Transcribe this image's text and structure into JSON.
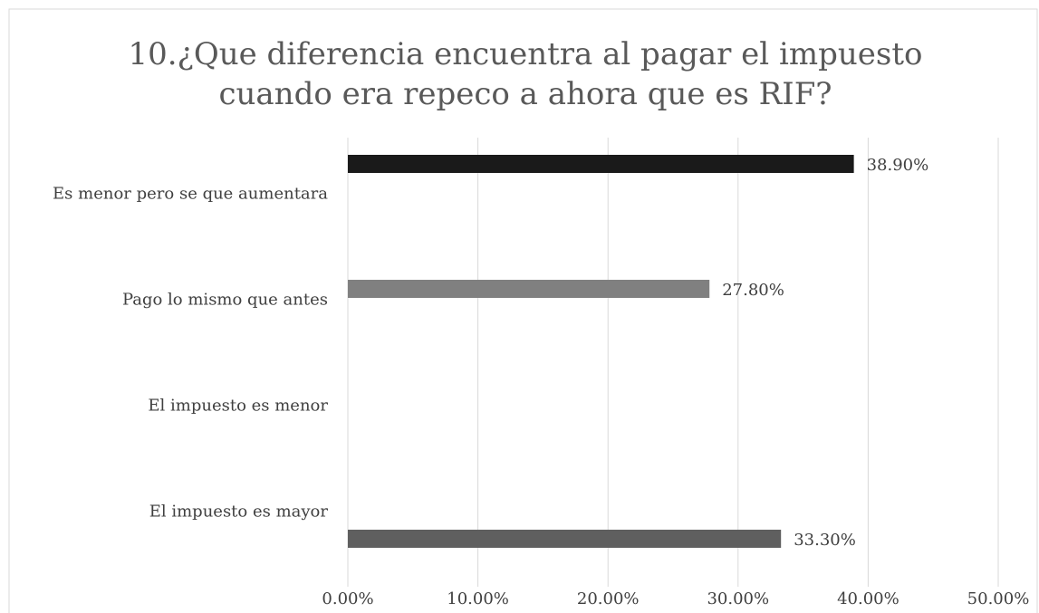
{
  "chart_data": {
    "type": "bar",
    "orientation": "horizontal",
    "title": [
      "10.¿Que diferencia encuentra al pagar el impuesto",
      "cuando era repeco a ahora que es RIF?"
    ],
    "categories": [
      "Es menor pero se que aumentara",
      "Pago lo mismo que antes",
      "El impuesto es menor",
      "El impuesto es mayor"
    ],
    "series": [
      {
        "color": "#1a1a1a",
        "values": [
          38.9,
          null,
          null,
          null
        ],
        "value_labels": [
          "38.90%",
          null,
          null,
          null
        ]
      },
      {
        "color": "#808080",
        "values": [
          null,
          27.8,
          null,
          null
        ],
        "value_labels": [
          null,
          "27.80%",
          null,
          null
        ]
      },
      {
        "color": "#5f5f5f",
        "values": [
          null,
          null,
          null,
          33.3
        ],
        "value_labels": [
          null,
          null,
          null,
          "33.30%"
        ]
      }
    ],
    "xlim": [
      0,
      50
    ],
    "xticks": [
      {
        "value": 0,
        "label": "0.00%"
      },
      {
        "value": 10,
        "label": "10.00%"
      },
      {
        "value": 20,
        "label": "20.00%"
      },
      {
        "value": 30,
        "label": "30.00%"
      },
      {
        "value": 40,
        "label": "40.00%"
      },
      {
        "value": 50,
        "label": "50.00%"
      }
    ],
    "grid": true
  }
}
